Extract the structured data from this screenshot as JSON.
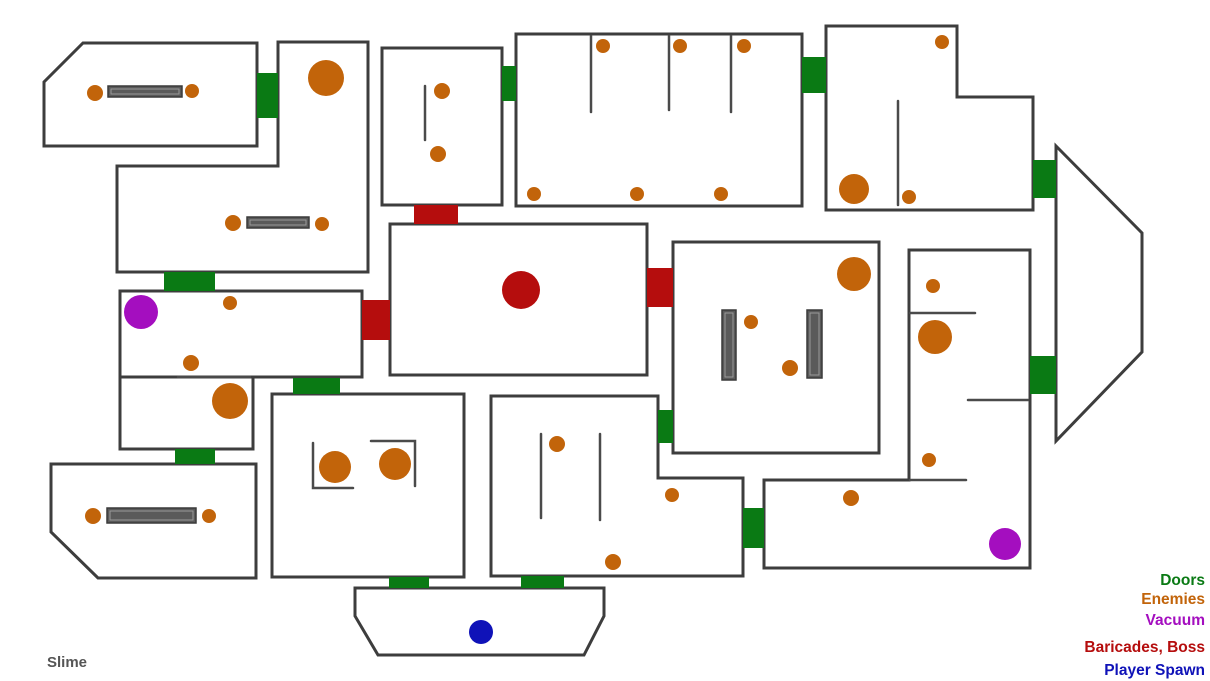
{
  "map_name": "Slime",
  "legend": [
    {
      "label": "Doors",
      "color": "#0a7a14"
    },
    {
      "label": "Enemies",
      "color": "#c2640a"
    },
    {
      "label": "Vacuum",
      "color": "#a40ebf"
    },
    {
      "label": "Baricades, Boss",
      "color": "#b50d0d"
    },
    {
      "label": "Player Spawn",
      "color": "#0f12b8"
    }
  ],
  "colors": {
    "wall": "#3d3d3d",
    "door": "#0a7a14",
    "enemy": "#c2640a",
    "vacuum": "#a40ebf",
    "barricade": "#b50d0d",
    "spawn": "#0f12b8",
    "obstacle": "#5a5a5a"
  }
}
